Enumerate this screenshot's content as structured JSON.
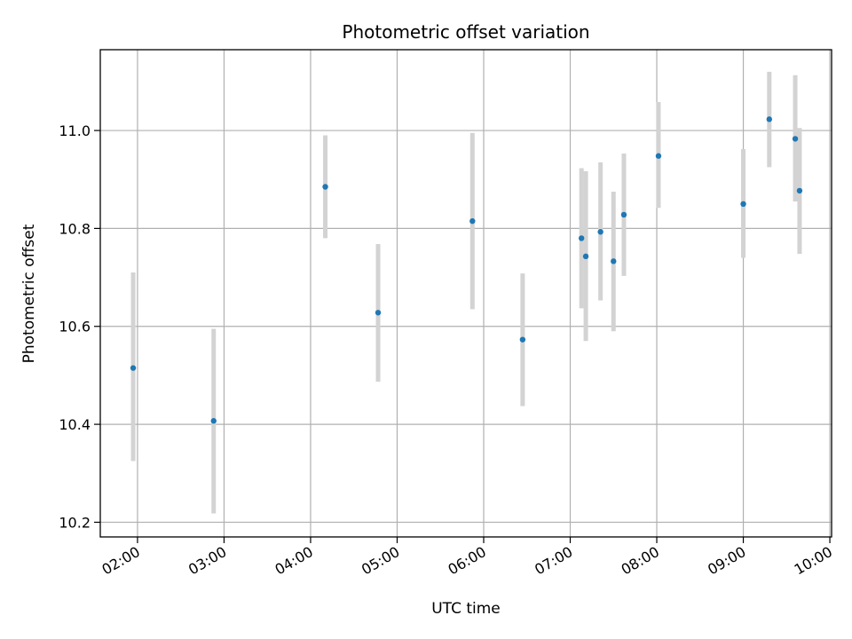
{
  "chart_data": {
    "type": "scatter",
    "title": "Photometric offset variation",
    "xlabel": "UTC time",
    "ylabel": "Photometric offset",
    "x_unit": "hours",
    "xlim": [
      1.57,
      10.02
    ],
    "ylim": [
      10.17,
      11.165
    ],
    "grid": true,
    "x_ticks": [
      {
        "value": 2,
        "label": "02:00"
      },
      {
        "value": 3,
        "label": "03:00"
      },
      {
        "value": 4,
        "label": "04:00"
      },
      {
        "value": 5,
        "label": "05:00"
      },
      {
        "value": 6,
        "label": "06:00"
      },
      {
        "value": 7,
        "label": "07:00"
      },
      {
        "value": 8,
        "label": "08:00"
      },
      {
        "value": 9,
        "label": "09:00"
      },
      {
        "value": 10,
        "label": "10:00"
      }
    ],
    "y_ticks": [
      {
        "value": 10.2,
        "label": "10.2"
      },
      {
        "value": 10.4,
        "label": "10.4"
      },
      {
        "value": 10.6,
        "label": "10.6"
      },
      {
        "value": 10.8,
        "label": "10.8"
      },
      {
        "value": 11.0,
        "label": "11.0"
      }
    ],
    "colors": {
      "point": "#1f77b4",
      "error_bar": "#d3d3d3",
      "grid": "#b0b0b0"
    },
    "points": [
      {
        "x": 1.95,
        "y": 10.515,
        "yerr_low": 10.325,
        "yerr_high": 10.71
      },
      {
        "x": 2.88,
        "y": 10.407,
        "yerr_low": 10.218,
        "yerr_high": 10.595
      },
      {
        "x": 4.17,
        "y": 10.885,
        "yerr_low": 10.78,
        "yerr_high": 10.99
      },
      {
        "x": 4.78,
        "y": 10.628,
        "yerr_low": 10.487,
        "yerr_high": 10.768
      },
      {
        "x": 5.87,
        "y": 10.815,
        "yerr_low": 10.635,
        "yerr_high": 10.995
      },
      {
        "x": 6.45,
        "y": 10.573,
        "yerr_low": 10.437,
        "yerr_high": 10.708
      },
      {
        "x": 7.13,
        "y": 10.78,
        "yerr_low": 10.637,
        "yerr_high": 10.923
      },
      {
        "x": 7.18,
        "y": 10.743,
        "yerr_low": 10.57,
        "yerr_high": 10.917
      },
      {
        "x": 7.35,
        "y": 10.793,
        "yerr_low": 10.653,
        "yerr_high": 10.935
      },
      {
        "x": 7.5,
        "y": 10.733,
        "yerr_low": 10.59,
        "yerr_high": 10.875
      },
      {
        "x": 7.62,
        "y": 10.828,
        "yerr_low": 10.703,
        "yerr_high": 10.953
      },
      {
        "x": 8.02,
        "y": 10.948,
        "yerr_low": 10.842,
        "yerr_high": 11.058
      },
      {
        "x": 9.0,
        "y": 10.85,
        "yerr_low": 10.74,
        "yerr_high": 10.962
      },
      {
        "x": 9.3,
        "y": 11.023,
        "yerr_low": 10.925,
        "yerr_high": 11.12
      },
      {
        "x": 9.6,
        "y": 10.983,
        "yerr_low": 10.855,
        "yerr_high": 11.113
      },
      {
        "x": 9.65,
        "y": 10.877,
        "yerr_low": 10.748,
        "yerr_high": 11.005
      }
    ]
  }
}
